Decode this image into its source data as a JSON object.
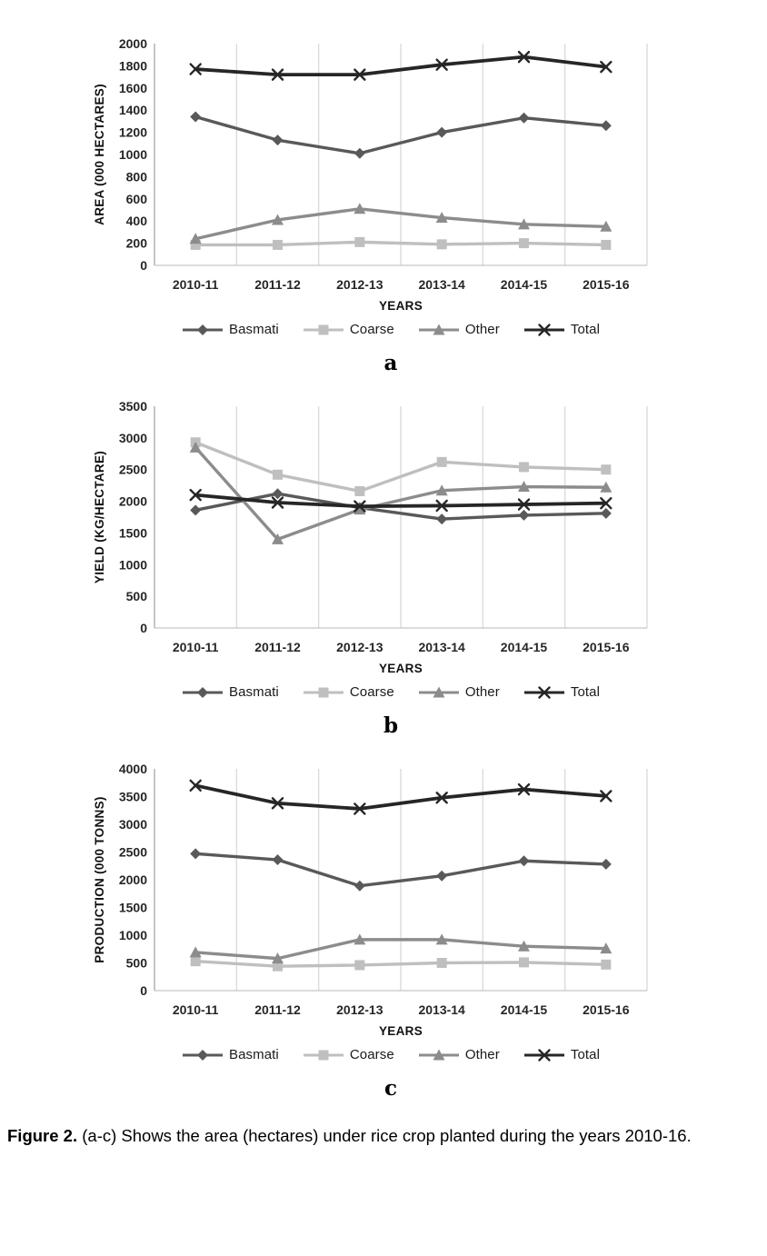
{
  "figure": {
    "caption_prefix": "Figure 2.",
    "caption_body": " (a-c) Shows the area (hectares) under rice crop planted during the years 2010-16."
  },
  "colors": {
    "basmati": "#595959",
    "coarse": "#bfbfbf",
    "other": "#8c8c8c",
    "total": "#262626",
    "gridline": "#d9d9d9",
    "axis_line": "#a6a6a6",
    "baseline": "#c6c6c6"
  },
  "chart_data": [
    {
      "label": "a",
      "type": "line",
      "xlabel": "YEARS",
      "ylabel": "AREA (000 HECTARES)",
      "ylim": [
        0,
        2000
      ],
      "ytick_step": 200,
      "grid": "vertical",
      "legend_position": "bottom",
      "categories": [
        "2010-11",
        "2011-12",
        "2012-13",
        "2013-14",
        "2014-15",
        "2015-16"
      ],
      "series": [
        {
          "name": "Basmati",
          "marker": "diamond",
          "color": "#595959",
          "values": [
            1340,
            1130,
            1010,
            1200,
            1330,
            1260
          ]
        },
        {
          "name": "Coarse",
          "marker": "square",
          "color": "#bfbfbf",
          "values": [
            185,
            185,
            210,
            190,
            200,
            185
          ]
        },
        {
          "name": "Other",
          "marker": "triangle",
          "color": "#8c8c8c",
          "values": [
            240,
            410,
            510,
            430,
            370,
            350
          ]
        },
        {
          "name": "Total",
          "marker": "x",
          "color": "#262626",
          "values": [
            1770,
            1720,
            1720,
            1810,
            1880,
            1790
          ]
        }
      ]
    },
    {
      "label": "b",
      "type": "line",
      "xlabel": "YEARS",
      "ylabel": "YIELD (KG/HECTARE)",
      "ylim": [
        0,
        3500
      ],
      "ytick_step": 500,
      "grid": "vertical",
      "legend_position": "bottom",
      "categories": [
        "2010-11",
        "2011-12",
        "2012-13",
        "2013-14",
        "2014-15",
        "2015-16"
      ],
      "series": [
        {
          "name": "Basmati",
          "marker": "diamond",
          "color": "#595959",
          "values": [
            1860,
            2120,
            1900,
            1720,
            1780,
            1810
          ]
        },
        {
          "name": "Coarse",
          "marker": "square",
          "color": "#bfbfbf",
          "values": [
            2930,
            2420,
            2160,
            2620,
            2540,
            2500
          ]
        },
        {
          "name": "Other",
          "marker": "triangle",
          "color": "#8c8c8c",
          "values": [
            2850,
            1400,
            1870,
            2170,
            2230,
            2220
          ]
        },
        {
          "name": "Total",
          "marker": "x",
          "color": "#262626",
          "values": [
            2100,
            1980,
            1920,
            1930,
            1950,
            1970
          ]
        }
      ]
    },
    {
      "label": "c",
      "type": "line",
      "xlabel": "YEARS",
      "ylabel": "PRODUCTION (000 TONNS)",
      "ylim": [
        0,
        4000
      ],
      "ytick_step": 500,
      "grid": "vertical",
      "legend_position": "bottom",
      "categories": [
        "2010-11",
        "2011-12",
        "2012-13",
        "2013-14",
        "2014-15",
        "2015-16"
      ],
      "series": [
        {
          "name": "Basmati",
          "marker": "diamond",
          "color": "#595959",
          "values": [
            2470,
            2360,
            1890,
            2070,
            2340,
            2280
          ]
        },
        {
          "name": "Coarse",
          "marker": "square",
          "color": "#bfbfbf",
          "values": [
            530,
            440,
            460,
            500,
            510,
            470
          ]
        },
        {
          "name": "Other",
          "marker": "triangle",
          "color": "#8c8c8c",
          "values": [
            690,
            580,
            920,
            920,
            800,
            760
          ]
        },
        {
          "name": "Total",
          "marker": "x",
          "color": "#262626",
          "values": [
            3700,
            3380,
            3280,
            3480,
            3630,
            3510
          ]
        }
      ]
    }
  ]
}
